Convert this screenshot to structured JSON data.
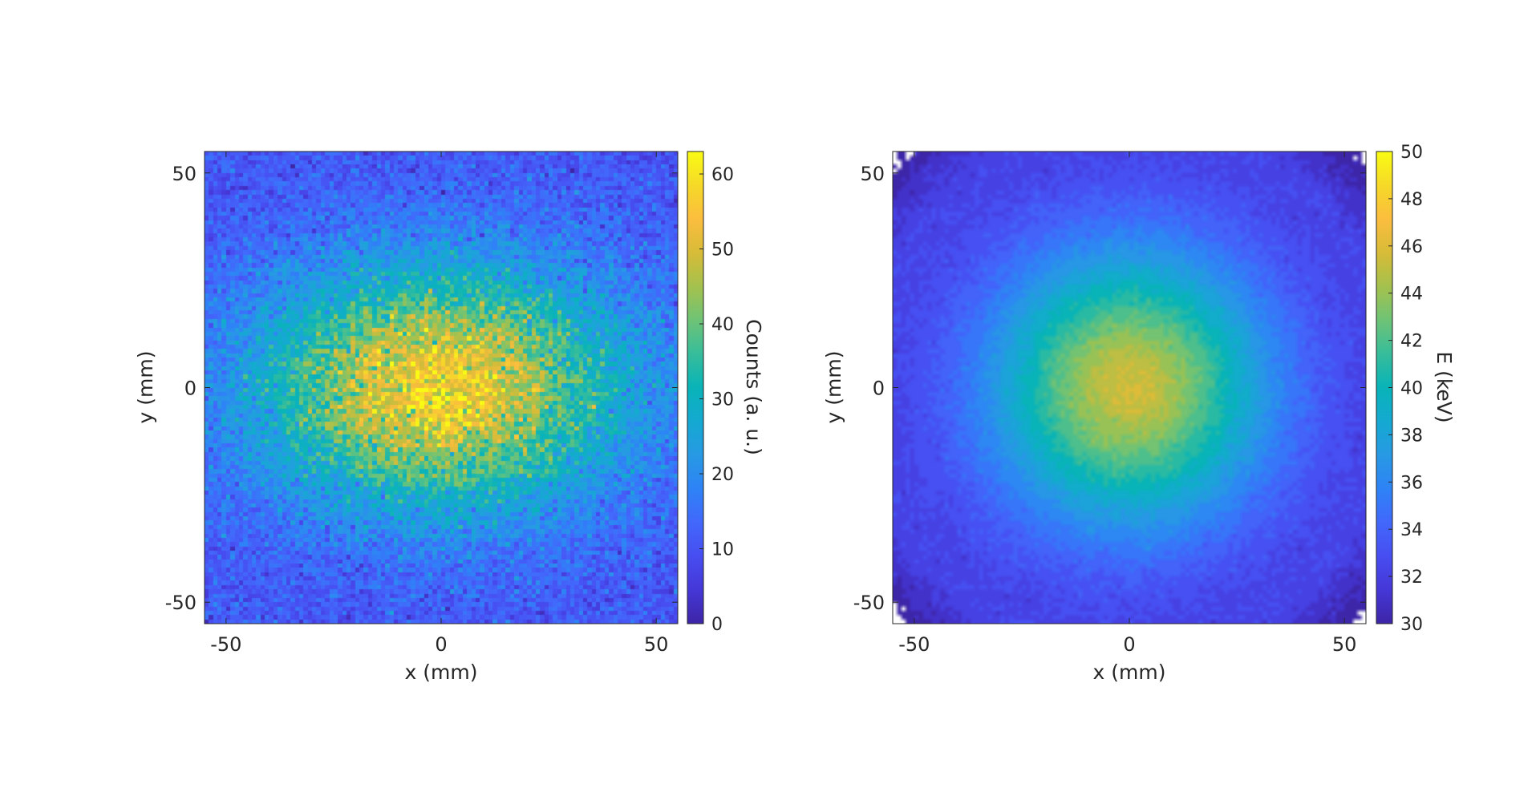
{
  "chart_data": [
    {
      "type": "heatmap",
      "title": "",
      "xlabel": "x (mm)",
      "ylabel": "y (mm)",
      "xlim": [
        -55,
        55
      ],
      "ylim": [
        -55,
        55
      ],
      "xticks": [
        -50,
        0,
        50
      ],
      "yticks": [
        -50,
        0,
        50
      ],
      "colorbar": {
        "label": "Counts (a. u.)",
        "range": [
          0,
          63
        ],
        "ticks": [
          0,
          10,
          20,
          30,
          40,
          50,
          60
        ]
      },
      "colormap": "parula",
      "distribution": {
        "shape": "elongated blob, wider in x than in y, noisy",
        "center": [
          0,
          0
        ],
        "peak_value": 55,
        "edge_value": 10,
        "sigma_x_mm": 30,
        "sigma_y_mm": 20
      },
      "grid": false
    },
    {
      "type": "heatmap",
      "title": "",
      "xlabel": "x (mm)",
      "ylabel": "y (mm)",
      "xlim": [
        -55,
        55
      ],
      "ylim": [
        -55,
        55
      ],
      "xticks": [
        -50,
        0,
        50
      ],
      "yticks": [
        -50,
        0,
        50
      ],
      "colorbar": {
        "label": "E (keV)",
        "range": [
          30,
          50
        ],
        "ticks": [
          30,
          32,
          34,
          36,
          38,
          40,
          42,
          44,
          46,
          48,
          50
        ]
      },
      "colormap": "parula",
      "distribution": {
        "shape": "circular radial falloff, filled contour, blank corners",
        "center": [
          0,
          0
        ],
        "peak_value": 45.5,
        "edge_value": 31.5,
        "corner_min_value": 30
      },
      "grid": false
    }
  ]
}
